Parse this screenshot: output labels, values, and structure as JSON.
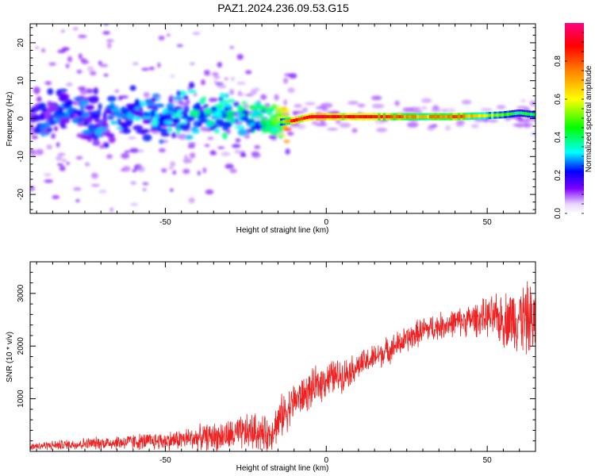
{
  "title": "PAZ1.2024.236.09.53.G15",
  "chart_data": [
    {
      "type": "heatmap",
      "xlabel": "Height of straight line (km)",
      "ylabel": "Frequency (Hz)",
      "xlim": [
        -92,
        65
      ],
      "ylim": [
        -25,
        25
      ],
      "xticks": [
        -50,
        0,
        50
      ],
      "yticks": [
        -20,
        -10,
        0,
        10,
        20
      ],
      "colorbar": {
        "label": "Normalized spectral amplitude",
        "range": [
          0.0,
          1.0
        ],
        "ticks": [
          0.0,
          0.2,
          0.4,
          0.6,
          0.8
        ],
        "tick_labels": [
          "0.0",
          "0.2",
          "0.4",
          "0.6",
          "0.8"
        ],
        "colors": [
          "#ffffff",
          "#8000ff",
          "#0000ff",
          "#00ffff",
          "#00ff00",
          "#ffff00",
          "#ff8000",
          "#ff0000",
          "#ff0080"
        ]
      },
      "ridge": {
        "x": [
          -92,
          -80,
          -70,
          -60,
          -50,
          -40,
          -30,
          -20,
          -15,
          -10,
          -5,
          0,
          5,
          10,
          20,
          30,
          40,
          50,
          55,
          60,
          65
        ],
        "frequency": [
          1,
          1,
          0.5,
          0.5,
          1,
          1,
          1,
          0.5,
          -1,
          -0.5,
          0.5,
          0.5,
          0.5,
          0.5,
          0.5,
          0.5,
          0.5,
          0.8,
          1,
          1.5,
          1
        ],
        "amplitude": [
          0.15,
          0.2,
          0.2,
          0.25,
          0.25,
          0.3,
          0.3,
          0.35,
          0.45,
          0.85,
          0.9,
          0.9,
          0.85,
          0.85,
          0.8,
          0.7,
          0.8,
          0.6,
          0.5,
          0.45,
          0.5
        ]
      }
    },
    {
      "type": "line",
      "xlabel": "Height of straight line (km)",
      "ylabel": "SNR (10 * v/v)",
      "xlim": [
        -92,
        65
      ],
      "ylim": [
        0,
        3600
      ],
      "xticks": [
        -50,
        0,
        50
      ],
      "yticks": [
        1000,
        2000,
        3000
      ],
      "color": "#ee2222",
      "envelope": {
        "x": [
          -92,
          -80,
          -70,
          -60,
          -50,
          -40,
          -30,
          -22,
          -18,
          -14,
          -10,
          -5,
          0,
          5,
          10,
          20,
          30,
          40,
          50,
          55,
          60,
          65
        ],
        "mean": [
          100,
          130,
          160,
          180,
          200,
          260,
          300,
          380,
          300,
          650,
          950,
          1150,
          1380,
          1450,
          1620,
          1950,
          2300,
          2450,
          2550,
          2500,
          2550,
          2450
        ],
        "spread": [
          70,
          100,
          120,
          150,
          170,
          220,
          300,
          350,
          320,
          400,
          350,
          350,
          350,
          300,
          250,
          250,
          250,
          250,
          350,
          500,
          650,
          700
        ]
      }
    }
  ]
}
